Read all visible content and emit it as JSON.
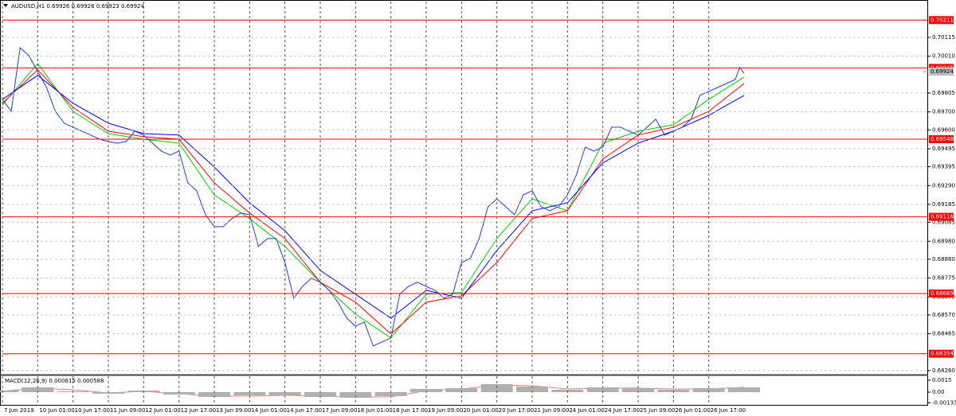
{
  "chart_data": [
    {
      "type": "line",
      "symbol": "AUDUSD,H1",
      "ohlc": [
        0.69926,
        0.69926,
        0.69923,
        0.69924
      ],
      "xlim": [
        0,
        419
      ],
      "ylim": [
        0.68242,
        0.70314
      ],
      "xticks": [
        {
          "value": 0,
          "label": "7 Jun 2019"
        },
        {
          "value": 16,
          "label": "10 Jun 01:00"
        },
        {
          "value": 32,
          "label": "10 Jun 17:00"
        },
        {
          "value": 48,
          "label": "11 Jun 09:00"
        },
        {
          "value": 64,
          "label": "12 Jun 01:00"
        },
        {
          "value": 80,
          "label": "12 Jun 17:00"
        },
        {
          "value": 96,
          "label": "13 Jun 09:00"
        },
        {
          "value": 112,
          "label": "14 Jun 01:00"
        },
        {
          "value": 128,
          "label": "14 Jun 17:00"
        },
        {
          "value": 144,
          "label": "17 Jun 09:00"
        },
        {
          "value": 160,
          "label": "18 Jun 01:00"
        },
        {
          "value": 176,
          "label": "18 Jun 17:00"
        },
        {
          "value": 192,
          "label": "19 Jun 09:00"
        },
        {
          "value": 208,
          "label": "20 Jun 01:00"
        },
        {
          "value": 224,
          "label": "20 Jun 17:00"
        },
        {
          "value": 240,
          "label": "21 Jun 09:00"
        },
        {
          "value": 256,
          "label": "24 Jun 01:00"
        },
        {
          "value": 272,
          "label": "24 Jun 17:00"
        },
        {
          "value": 288,
          "label": "25 Jun 09:00"
        },
        {
          "value": 304,
          "label": "26 Jun 01:00"
        },
        {
          "value": 320,
          "label": "26 Jun 17:00"
        }
      ],
      "yticks": [
        0.70115,
        {
          "value": 0.7001,
          "label": "0.70010"
        },
        0.69805,
        {
          "value": 0.697,
          "label": "0.69700"
        },
        {
          "value": 0.696,
          "label": "0.69600"
        },
        0.69495,
        0.69395,
        {
          "value": 0.6929,
          "label": "0.69290"
        },
        0.69185,
        0.69085,
        {
          "value": 0.6898,
          "label": "0.68980"
        },
        {
          "value": 0.6888,
          "label": "0.68880"
        },
        0.68775,
        {
          "value": 0.6867,
          "label": "0.68670"
        },
        {
          "value": 0.6857,
          "label": "0.68570"
        },
        0.68465,
        {
          "value": 0.6826,
          "label": "0.68260"
        }
      ],
      "grid": true,
      "hlines": [
        0.70211,
        0.69945,
        0.69548,
        0.69116,
        0.68689,
        0.68354
      ],
      "hline_color": "#ff0000",
      "last_price": 0.69924,
      "series": [
        {
          "color": "#1f3fd1",
          "x": [
            0,
            4,
            8,
            12,
            16,
            20,
            24,
            28,
            32,
            36,
            40,
            44,
            48,
            52,
            56,
            60,
            64,
            68,
            72,
            76,
            80,
            84,
            88,
            92,
            96,
            100,
            104,
            108,
            112,
            116,
            120,
            124,
            128,
            132,
            136,
            140,
            144,
            148,
            152,
            156,
            160,
            164,
            168,
            172,
            176,
            180,
            184,
            188,
            192,
            196,
            200,
            204,
            208,
            212,
            216,
            220,
            224,
            228,
            232,
            236,
            240,
            244,
            248,
            252,
            256,
            260,
            264,
            268,
            272,
            276,
            280,
            284,
            288,
            292,
            296,
            300,
            304,
            308,
            312,
            316,
            320,
            324,
            328,
            332,
            334,
            336
          ],
          "values": [
            0.6977,
            0.69703,
            0.70057,
            0.70013,
            0.69925,
            0.69836,
            0.69703,
            0.69637,
            0.69615,
            0.69593,
            0.69571,
            0.69548,
            0.69535,
            0.69526,
            0.69535,
            0.69593,
            0.69571,
            0.69526,
            0.69482,
            0.6946,
            0.69482,
            0.69305,
            0.69261,
            0.69128,
            0.69061,
            0.69061,
            0.69106,
            0.69137,
            0.69128,
            0.68951,
            0.68995,
            0.68995,
            0.68862,
            0.68663,
            0.68729,
            0.68774,
            0.68752,
            0.68707,
            0.68641,
            0.68552,
            0.68508,
            0.6853,
            0.68397,
            0.6842,
            0.68442,
            0.68685,
            0.68729,
            0.68752,
            0.68729,
            0.68707,
            0.68663,
            0.68685,
            0.68862,
            0.68884,
            0.68995,
            0.69172,
            0.69216,
            0.69172,
            0.69128,
            0.69238,
            0.69261,
            0.69172,
            0.6915,
            0.69172,
            0.69238,
            0.69349,
            0.69504,
            0.69482,
            0.69504,
            0.69615,
            0.69615,
            0.69593,
            0.69571,
            0.69615,
            0.69659,
            0.69571,
            0.69593,
            0.69615,
            0.69659,
            0.69792,
            0.69814,
            0.69836,
            0.69858,
            0.6988,
            0.69947,
            0.69916
          ]
        },
        {
          "color": "#0000ff",
          "x": [
            0,
            16,
            32,
            48,
            64,
            80,
            96,
            112,
            128,
            144,
            160,
            176,
            192,
            208,
            224,
            240,
            256,
            272,
            288,
            304,
            320,
            336
          ],
          "values": [
            0.6977,
            0.69903,
            0.69748,
            0.69637,
            0.69579,
            0.69571,
            0.69393,
            0.69194,
            0.69039,
            0.68818,
            0.68685,
            0.68552,
            0.68707,
            0.68663,
            0.68929,
            0.6915,
            0.69194,
            0.69416,
            0.69526,
            0.69593,
            0.69681,
            0.69792
          ]
        },
        {
          "color": "#ff0000",
          "x": [
            0,
            16,
            32,
            48,
            64,
            80,
            96,
            112,
            128,
            144,
            160,
            176,
            192,
            208,
            224,
            240,
            256,
            272,
            288,
            304,
            320,
            336
          ],
          "values": [
            0.69748,
            0.69934,
            0.69725,
            0.69593,
            0.69562,
            0.69548,
            0.69305,
            0.69137,
            0.68995,
            0.68752,
            0.68641,
            0.68464,
            0.68641,
            0.68676,
            0.68862,
            0.69106,
            0.6915,
            0.69438,
            0.69571,
            0.69615,
            0.69703,
            0.69858
          ]
        },
        {
          "color": "#00d000",
          "x": [
            0,
            16,
            32,
            48,
            64,
            80,
            96,
            112,
            128,
            144,
            160,
            176,
            192,
            208,
            224,
            240,
            256,
            272,
            288,
            304,
            320,
            336
          ],
          "values": [
            0.69739,
            0.69969,
            0.69703,
            0.69579,
            0.69548,
            0.69526,
            0.69238,
            0.69106,
            0.68951,
            0.68752,
            0.68574,
            0.68442,
            0.68685,
            0.68694,
            0.68995,
            0.69216,
            0.6915,
            0.69526,
            0.69593,
            0.69628,
            0.6977,
            0.69894
          ]
        }
      ]
    },
    {
      "type": "bar",
      "indicator": "MACD(12,26,9)",
      "current": [
        0.000615,
        0.000588
      ],
      "xlim": [
        0,
        419
      ],
      "ylim": [
        -0.0017,
        0.002
      ],
      "yticks": [
        0.0015,
        {
          "value": 0,
          "label": "0.00"
        },
        -0.001331
      ],
      "series": [
        {
          "color": "#b0b0b0",
          "kind": "bar",
          "x": [
            0,
            16,
            32,
            48,
            64,
            80,
            96,
            112,
            128,
            144,
            160,
            176,
            192,
            208,
            224,
            240,
            256,
            272,
            288,
            304,
            320,
            336
          ],
          "values": [
            0.0002,
            0.0006,
            0.0001,
            -0.0002,
            0.0002,
            -0.0003,
            -0.0006,
            -0.0004,
            -0.0004,
            -0.0006,
            -0.0007,
            -0.0005,
            0.0004,
            0.0005,
            0.001,
            0.0007,
            0.0003,
            0.0006,
            0.0005,
            0.0003,
            0.0005,
            0.0006
          ]
        },
        {
          "color": "#ff0000",
          "kind": "line",
          "x": [
            0,
            16,
            32,
            48,
            64,
            80,
            96,
            112,
            128,
            144,
            160,
            176,
            192,
            208,
            224,
            240,
            256,
            272,
            288,
            304,
            320,
            336
          ],
          "values": [
            0.0001,
            0.0005,
            0.0003,
            -0.0001,
            0.0001,
            -0.0002,
            -0.0005,
            -0.0005,
            -0.0004,
            -0.0005,
            -0.0006,
            -0.0006,
            0.0002,
            0.0004,
            0.0009,
            0.0008,
            0.0004,
            0.0005,
            0.0005,
            0.0004,
            0.0004,
            0.0006
          ]
        }
      ]
    }
  ]
}
